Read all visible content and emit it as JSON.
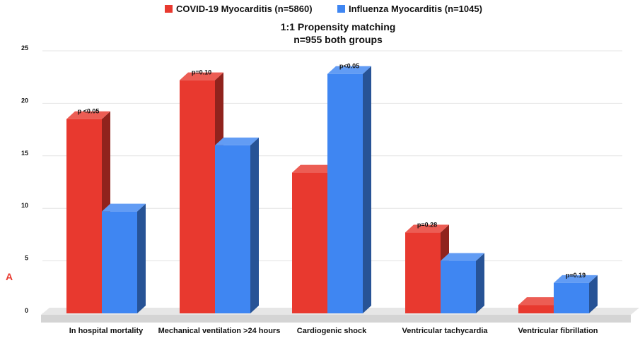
{
  "chart_data": {
    "type": "bar",
    "title": "1:1 Propensity matching",
    "subtitle": "n=955 both groups",
    "panel_label": "A",
    "categories": [
      "In hospital mortality",
      "Mechanical ventilation >24 hours",
      "Cardiogenic shock",
      "Ventricular tachycardia",
      "Ventricular fibrillation"
    ],
    "series": [
      {
        "name": "COVID-19 Myocarditis (n=5860)",
        "color": "#e8392f",
        "values": [
          18.5,
          22.2,
          13.4,
          7.7,
          0.8
        ]
      },
      {
        "name": "Influenza Myocarditis (n=1045)",
        "color": "#3f86f2",
        "values": [
          9.7,
          16.0,
          22.8,
          5.0,
          2.9
        ]
      }
    ],
    "annotations": [
      {
        "category": "In hospital mortality",
        "text": "p <0.05"
      },
      {
        "category": "Mechanical ventilation >24 hours",
        "text": "p=0.10"
      },
      {
        "category": "Cardiogenic shock",
        "text": "p<0.05"
      },
      {
        "category": "Ventricular tachycardia",
        "text": "p=0.28"
      },
      {
        "category": "Ventricular fibrillation",
        "text": "p=0.19"
      }
    ],
    "yticks": [
      "0",
      "5",
      "10",
      "15",
      "20",
      "25"
    ],
    "ylim": [
      0,
      25
    ],
    "grid": true,
    "legend": "top-center",
    "accent_color": "#e8392f"
  }
}
